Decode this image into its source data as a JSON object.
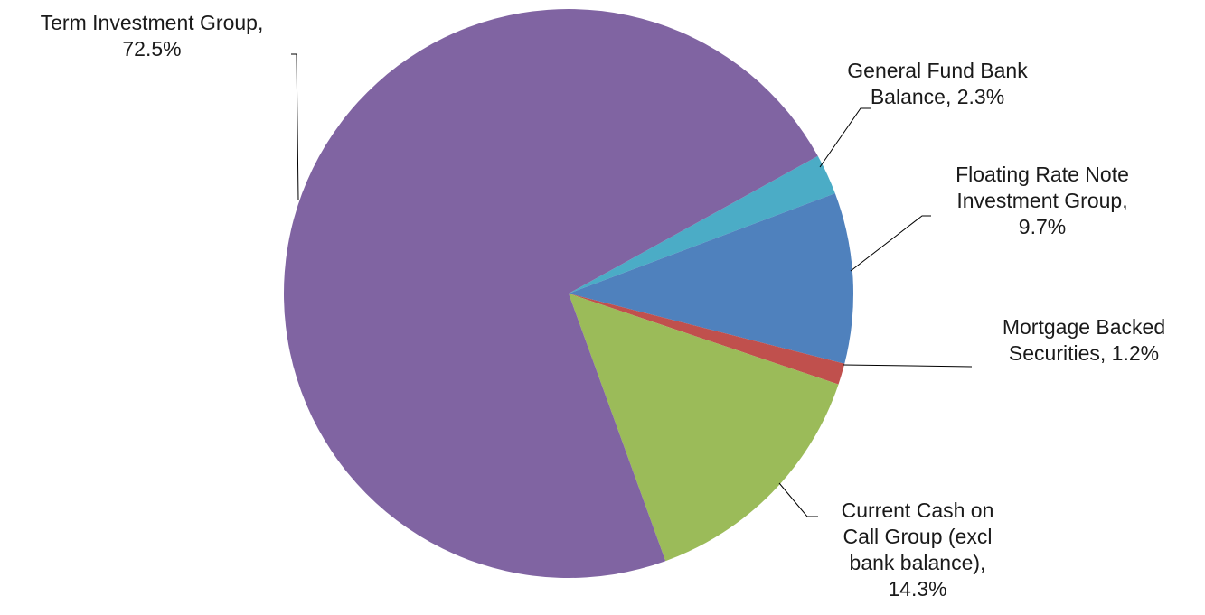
{
  "chart_data": {
    "type": "pie",
    "title": "",
    "slices": [
      {
        "name": "General Fund Bank Balance",
        "value": 2.3,
        "color": "#4BACC6",
        "label_lines": [
          "General Fund Bank",
          "Balance, 2.3%"
        ]
      },
      {
        "name": "Floating Rate Note Investment Group",
        "value": 9.7,
        "color": "#4F81BD",
        "label_lines": [
          "Floating Rate Note",
          "Investment Group,",
          "9.7%"
        ]
      },
      {
        "name": "Mortgage Backed Securities",
        "value": 1.2,
        "color": "#C0504D",
        "label_lines": [
          "Mortgage Backed",
          "Securities, 1.2%"
        ]
      },
      {
        "name": "Current Cash on Call Group (excl bank balance)",
        "value": 14.3,
        "color": "#9BBB59",
        "label_lines": [
          "Current Cash on",
          "Call Group (excl",
          "bank balance),",
          "14.3%"
        ]
      },
      {
        "name": "Term Investment Group",
        "value": 72.5,
        "color": "#8064A2",
        "label_lines": [
          "Term Investment Group,",
          "72.5%"
        ]
      }
    ],
    "legend": "none",
    "data_labels": "outside with leader lines"
  }
}
